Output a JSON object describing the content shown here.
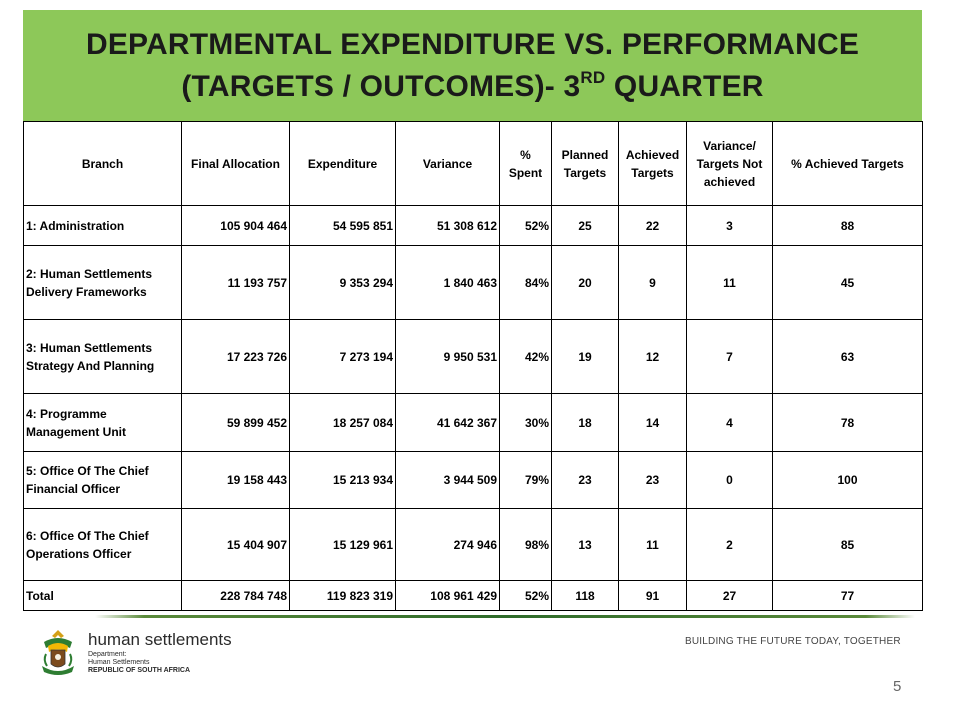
{
  "title": {
    "line1": "DEPARTMENTAL EXPENDITURE VS. PERFORMANCE",
    "line2_prefix": "(TARGETS / OUTCOMES)- 3",
    "line2_sup": "RD",
    "line2_suffix": " QUARTER"
  },
  "table": {
    "headers": {
      "branch": "Branch",
      "final_allocation": "Final Allocation",
      "expenditure": "Expenditure",
      "variance": "Variance",
      "pct_spent": "% Spent",
      "planned": "Planned Targets",
      "achieved": "Achieved Targets",
      "variance_targets": "Variance/ Targets Not achieved",
      "pct_achieved": "% Achieved Targets"
    },
    "rows": [
      {
        "branch": "1: Administration",
        "final_allocation": "105 904 464",
        "expenditure": "54 595 851",
        "variance": "51 308 612",
        "pct_spent": "52%",
        "planned": "25",
        "achieved": "22",
        "variance_targets": "3",
        "pct_achieved": "88"
      },
      {
        "branch": "2: Human Settlements Delivery Frameworks",
        "final_allocation": "11 193 757",
        "expenditure": "9 353 294",
        "variance": "1 840 463",
        "pct_spent": "84%",
        "planned": "20",
        "achieved": "9",
        "variance_targets": "11",
        "pct_achieved": "45"
      },
      {
        "branch": "3: Human Settlements Strategy And Planning",
        "final_allocation": "17 223 726",
        "expenditure": "7 273 194",
        "variance": "9 950 531",
        "pct_spent": "42%",
        "planned": "19",
        "achieved": "12",
        "variance_targets": "7",
        "pct_achieved": "63"
      },
      {
        "branch": "4: Programme Management Unit",
        "final_allocation": "59 899 452",
        "expenditure": "18 257 084",
        "variance": "41 642 367",
        "pct_spent": "30%",
        "planned": "18",
        "achieved": "14",
        "variance_targets": "4",
        "pct_achieved": "78"
      },
      {
        "branch": "5: Office Of The Chief Financial Officer",
        "final_allocation": "19 158 443",
        "expenditure": "15 213 934",
        "variance": "3 944 509",
        "pct_spent": "79%",
        "planned": "23",
        "achieved": "23",
        "variance_targets": "0",
        "pct_achieved": "100"
      },
      {
        "branch": "6: Office Of The Chief Operations Officer",
        "final_allocation": "15 404 907",
        "expenditure": "15 129 961",
        "variance": "274 946",
        "pct_spent": "98%",
        "planned": "13",
        "achieved": "11",
        "variance_targets": "2",
        "pct_achieved": "85"
      },
      {
        "branch": "Total",
        "final_allocation": "228 784 748",
        "expenditure": "119 823 319",
        "variance": "108 961 429",
        "pct_spent": "52%",
        "planned": "118",
        "achieved": "91",
        "variance_targets": "27",
        "pct_achieved": "77"
      }
    ]
  },
  "footer": {
    "dept_name": "human settlements",
    "dept_line1": "Department:",
    "dept_line2": "Human Settlements",
    "dept_line3": "REPUBLIC OF SOUTH AFRICA",
    "slogan": "BUILDING THE FUTURE TODAY, TOGETHER",
    "page_number": "5"
  },
  "colors": {
    "title_bar": "#8dc859",
    "footer_rule": "#2e6b2a"
  },
  "icons": {
    "logo": "south-africa-coat-of-arms-icon"
  }
}
